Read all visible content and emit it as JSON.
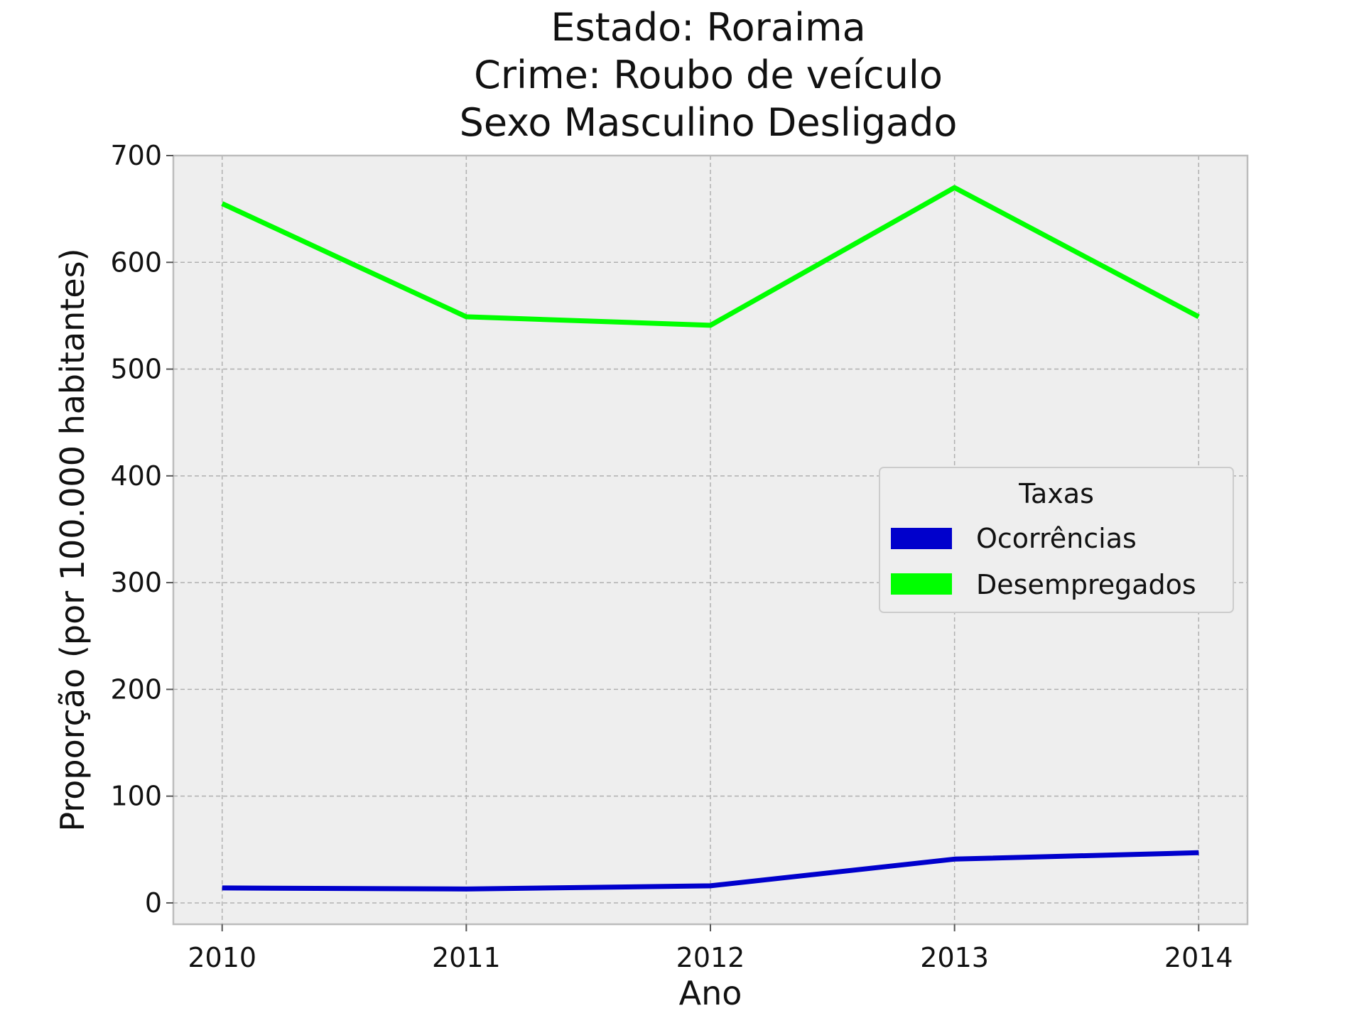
{
  "chart_data": {
    "type": "line",
    "title_lines": [
      "Estado: Roraima",
      "Crime: Roubo de veículo",
      "Sexo  Masculino   Desligado"
    ],
    "xlabel": "Ano",
    "ylabel": "Proporção (por 100.000 habitantes)",
    "x": [
      "2010",
      "2011",
      "2012",
      "2013",
      "2014"
    ],
    "xlim": [
      -0.2,
      4.2
    ],
    "ylim": [
      -20,
      700
    ],
    "yticks": [
      0,
      100,
      200,
      300,
      400,
      500,
      600,
      700
    ],
    "grid": true,
    "legend": {
      "title": "Taxas",
      "placement": "center-right"
    },
    "series": [
      {
        "name": "Ocorrências",
        "color": "#0000cc",
        "values": [
          14,
          13,
          16,
          41,
          47
        ]
      },
      {
        "name": "Desempregados",
        "color": "#00ff00",
        "values": [
          655,
          549,
          541,
          670,
          549
        ]
      }
    ],
    "colors": {
      "plot_background": "#eeeeee",
      "grid": "#b0b0b0",
      "frame": "#bcbcbc"
    }
  }
}
